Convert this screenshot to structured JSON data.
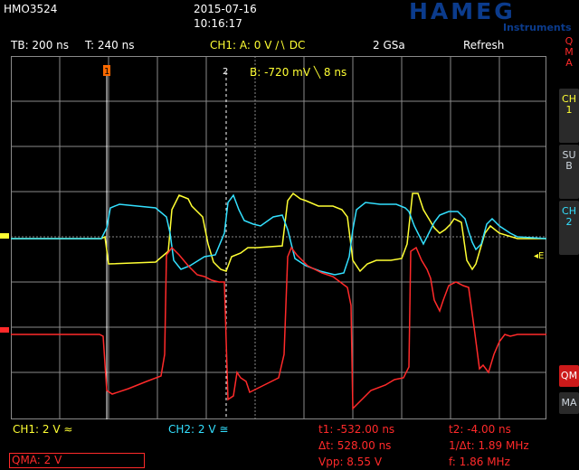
{
  "header": {
    "model": "HMO3524",
    "date": "2015-07-16",
    "time": "10:16:17",
    "brand": "HAMEG",
    "brand_sub": "Instruments"
  },
  "status": {
    "timebase": "TB: 200 ns",
    "trigger_time": "T: 240 ns",
    "trigger_setting": "CH1:  A: 0 V ∕∖ DC",
    "sample_rate": "2 GSa",
    "mode": "Refresh"
  },
  "screen": {
    "trigger_b": "B:  -720 mV ╲ 8 ns",
    "marker_1": "1",
    "marker_2": "2",
    "edge_label": "◂E"
  },
  "side_menu": {
    "qma_label": "QMA",
    "ch1_label": "CH1",
    "sub_label": "SUB",
    "ch2_label": "CH2",
    "qm_label": "QM",
    "ma_label": "MA"
  },
  "footer": {
    "ch1": "CH1: 2 V ≈",
    "ch2": "CH2: 2 V ≅",
    "t1": "t1:  -532.00 ns",
    "t2": "t2:  -4.00 ns",
    "dt": "Δt:  528.00 ns",
    "inv_dt": "1/Δt:  1.89 MHz",
    "qma": "QMA: 2 V",
    "vpp": "Vpp:  8.55 V",
    "freq": "f:  1.86 MHz"
  },
  "colors": {
    "ch1": "#ffff33",
    "ch2": "#33e0ff",
    "math": "#ff2a2a",
    "grid": "#8a8a8a",
    "accent": "#ff6a00"
  }
}
